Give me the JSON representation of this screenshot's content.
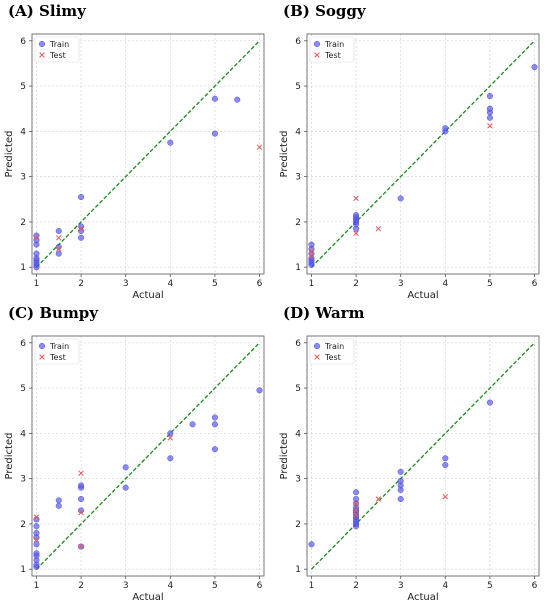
{
  "chart_data": [
    {
      "type": "scatter",
      "title": "(A) Slimy",
      "xlabel": "Actual",
      "ylabel": "Predicted",
      "xlim": [
        0.9,
        6.1
      ],
      "ylim": [
        0.85,
        6.15
      ],
      "xticks": [
        1,
        2,
        3,
        4,
        5,
        6
      ],
      "yticks": [
        1,
        2,
        3,
        4,
        5,
        6
      ],
      "grid": true,
      "reference_line": "y = x",
      "legend": [
        "Train",
        "Test"
      ],
      "legend_position": "top-left",
      "series": [
        {
          "name": "Train",
          "points": [
            [
              1,
              1.0
            ],
            [
              1,
              1.05
            ],
            [
              1,
              1.1
            ],
            [
              1,
              1.15
            ],
            [
              1,
              1.2
            ],
            [
              1,
              1.3
            ],
            [
              1,
              1.5
            ],
            [
              1,
              1.6
            ],
            [
              1,
              1.7
            ],
            [
              1.5,
              1.3
            ],
            [
              1.5,
              1.45
            ],
            [
              1.5,
              1.8
            ],
            [
              2,
              1.65
            ],
            [
              2,
              1.8
            ],
            [
              2,
              1.9
            ],
            [
              2,
              2.55
            ],
            [
              4,
              3.75
            ],
            [
              5,
              3.95
            ],
            [
              5,
              4.72
            ],
            [
              5.5,
              4.7
            ]
          ]
        },
        {
          "name": "Test",
          "points": [
            [
              1,
              1.65
            ],
            [
              1.5,
              1.4
            ],
            [
              1.5,
              1.65
            ],
            [
              2,
              1.85
            ],
            [
              6,
              3.65
            ]
          ]
        }
      ]
    },
    {
      "type": "scatter",
      "title": "(B) Soggy",
      "xlabel": "Actual",
      "ylabel": "Predicted",
      "xlim": [
        0.9,
        6.1
      ],
      "ylim": [
        0.85,
        6.15
      ],
      "xticks": [
        1,
        2,
        3,
        4,
        5,
        6
      ],
      "yticks": [
        1,
        2,
        3,
        4,
        5,
        6
      ],
      "grid": true,
      "reference_line": "y = x",
      "legend": [
        "Train",
        "Test"
      ],
      "legend_position": "top-left",
      "series": [
        {
          "name": "Train",
          "points": [
            [
              1,
              1.05
            ],
            [
              1,
              1.1
            ],
            [
              1,
              1.15
            ],
            [
              1,
              1.2
            ],
            [
              1,
              1.3
            ],
            [
              1,
              1.4
            ],
            [
              1,
              1.5
            ],
            [
              2,
              1.85
            ],
            [
              2,
              1.95
            ],
            [
              2,
              2.0
            ],
            [
              2,
              2.05
            ],
            [
              2,
              2.1
            ],
            [
              2,
              2.15
            ],
            [
              3,
              2.52
            ],
            [
              4,
              4.0
            ],
            [
              4,
              4.07
            ],
            [
              5,
              4.3
            ],
            [
              5,
              4.42
            ],
            [
              5,
              4.5
            ],
            [
              5,
              4.78
            ],
            [
              6,
              5.42
            ]
          ]
        },
        {
          "name": "Test",
          "points": [
            [
              1,
              1.25
            ],
            [
              1,
              1.35
            ],
            [
              2,
              1.75
            ],
            [
              2,
              2.52
            ],
            [
              2.5,
              1.85
            ],
            [
              5,
              4.12
            ]
          ]
        }
      ]
    },
    {
      "type": "scatter",
      "title": "(C) Bumpy",
      "xlabel": "Actual",
      "ylabel": "Predicted",
      "xlim": [
        0.9,
        6.1
      ],
      "ylim": [
        0.85,
        6.15
      ],
      "xticks": [
        1,
        2,
        3,
        4,
        5,
        6
      ],
      "yticks": [
        1,
        2,
        3,
        4,
        5,
        6
      ],
      "grid": true,
      "reference_line": "y = x",
      "legend": [
        "Train",
        "Test"
      ],
      "legend_position": "top-left",
      "series": [
        {
          "name": "Train",
          "points": [
            [
              1,
              1.05
            ],
            [
              1,
              1.1
            ],
            [
              1,
              1.2
            ],
            [
              1,
              1.3
            ],
            [
              1,
              1.35
            ],
            [
              1,
              1.55
            ],
            [
              1,
              1.7
            ],
            [
              1,
              1.8
            ],
            [
              1,
              1.95
            ],
            [
              1,
              2.1
            ],
            [
              1.5,
              2.4
            ],
            [
              1.5,
              2.52
            ],
            [
              2,
              1.5
            ],
            [
              2,
              2.3
            ],
            [
              2,
              2.55
            ],
            [
              2,
              2.8
            ],
            [
              2,
              2.85
            ],
            [
              3,
              2.8
            ],
            [
              3,
              3.25
            ],
            [
              4,
              3.45
            ],
            [
              4,
              4.0
            ],
            [
              4.5,
              4.2
            ],
            [
              5,
              3.65
            ],
            [
              5,
              4.2
            ],
            [
              5,
              4.35
            ],
            [
              6,
              4.95
            ]
          ]
        },
        {
          "name": "Test",
          "points": [
            [
              1,
              2.15
            ],
            [
              1,
              1.65
            ],
            [
              2,
              3.12
            ],
            [
              2,
              2.25
            ],
            [
              2,
              1.5
            ],
            [
              4,
              3.9
            ]
          ]
        }
      ]
    },
    {
      "type": "scatter",
      "title": "(D) Warm",
      "xlabel": "Actual",
      "ylabel": "Predicted",
      "xlim": [
        0.9,
        6.1
      ],
      "ylim": [
        0.85,
        6.15
      ],
      "xticks": [
        1,
        2,
        3,
        4,
        5,
        6
      ],
      "yticks": [
        1,
        2,
        3,
        4,
        5,
        6
      ],
      "grid": true,
      "reference_line": "y = x",
      "legend": [
        "Train",
        "Test"
      ],
      "legend_position": "top-left",
      "series": [
        {
          "name": "Train",
          "points": [
            [
              1,
              1.55
            ],
            [
              2,
              1.95
            ],
            [
              2,
              2.0
            ],
            [
              2,
              2.05
            ],
            [
              2,
              2.1
            ],
            [
              2,
              2.15
            ],
            [
              2,
              2.2
            ],
            [
              2,
              2.25
            ],
            [
              2,
              2.3
            ],
            [
              2,
              2.35
            ],
            [
              2,
              2.45
            ],
            [
              2,
              2.55
            ],
            [
              2,
              2.7
            ],
            [
              3,
              2.55
            ],
            [
              3,
              2.75
            ],
            [
              3,
              2.85
            ],
            [
              3,
              2.95
            ],
            [
              3,
              3.15
            ],
            [
              4,
              3.3
            ],
            [
              4,
              3.45
            ],
            [
              5,
              4.68
            ]
          ]
        },
        {
          "name": "Test",
          "points": [
            [
              2,
              2.2
            ],
            [
              2,
              2.3
            ],
            [
              2,
              2.45
            ],
            [
              2.5,
              2.55
            ],
            [
              4,
              2.6
            ]
          ]
        }
      ]
    }
  ],
  "colors": {
    "train": "#5a5af0",
    "test": "#e8585a",
    "reference_line": "#1a8a1a",
    "grid": "#d4d4d4"
  }
}
